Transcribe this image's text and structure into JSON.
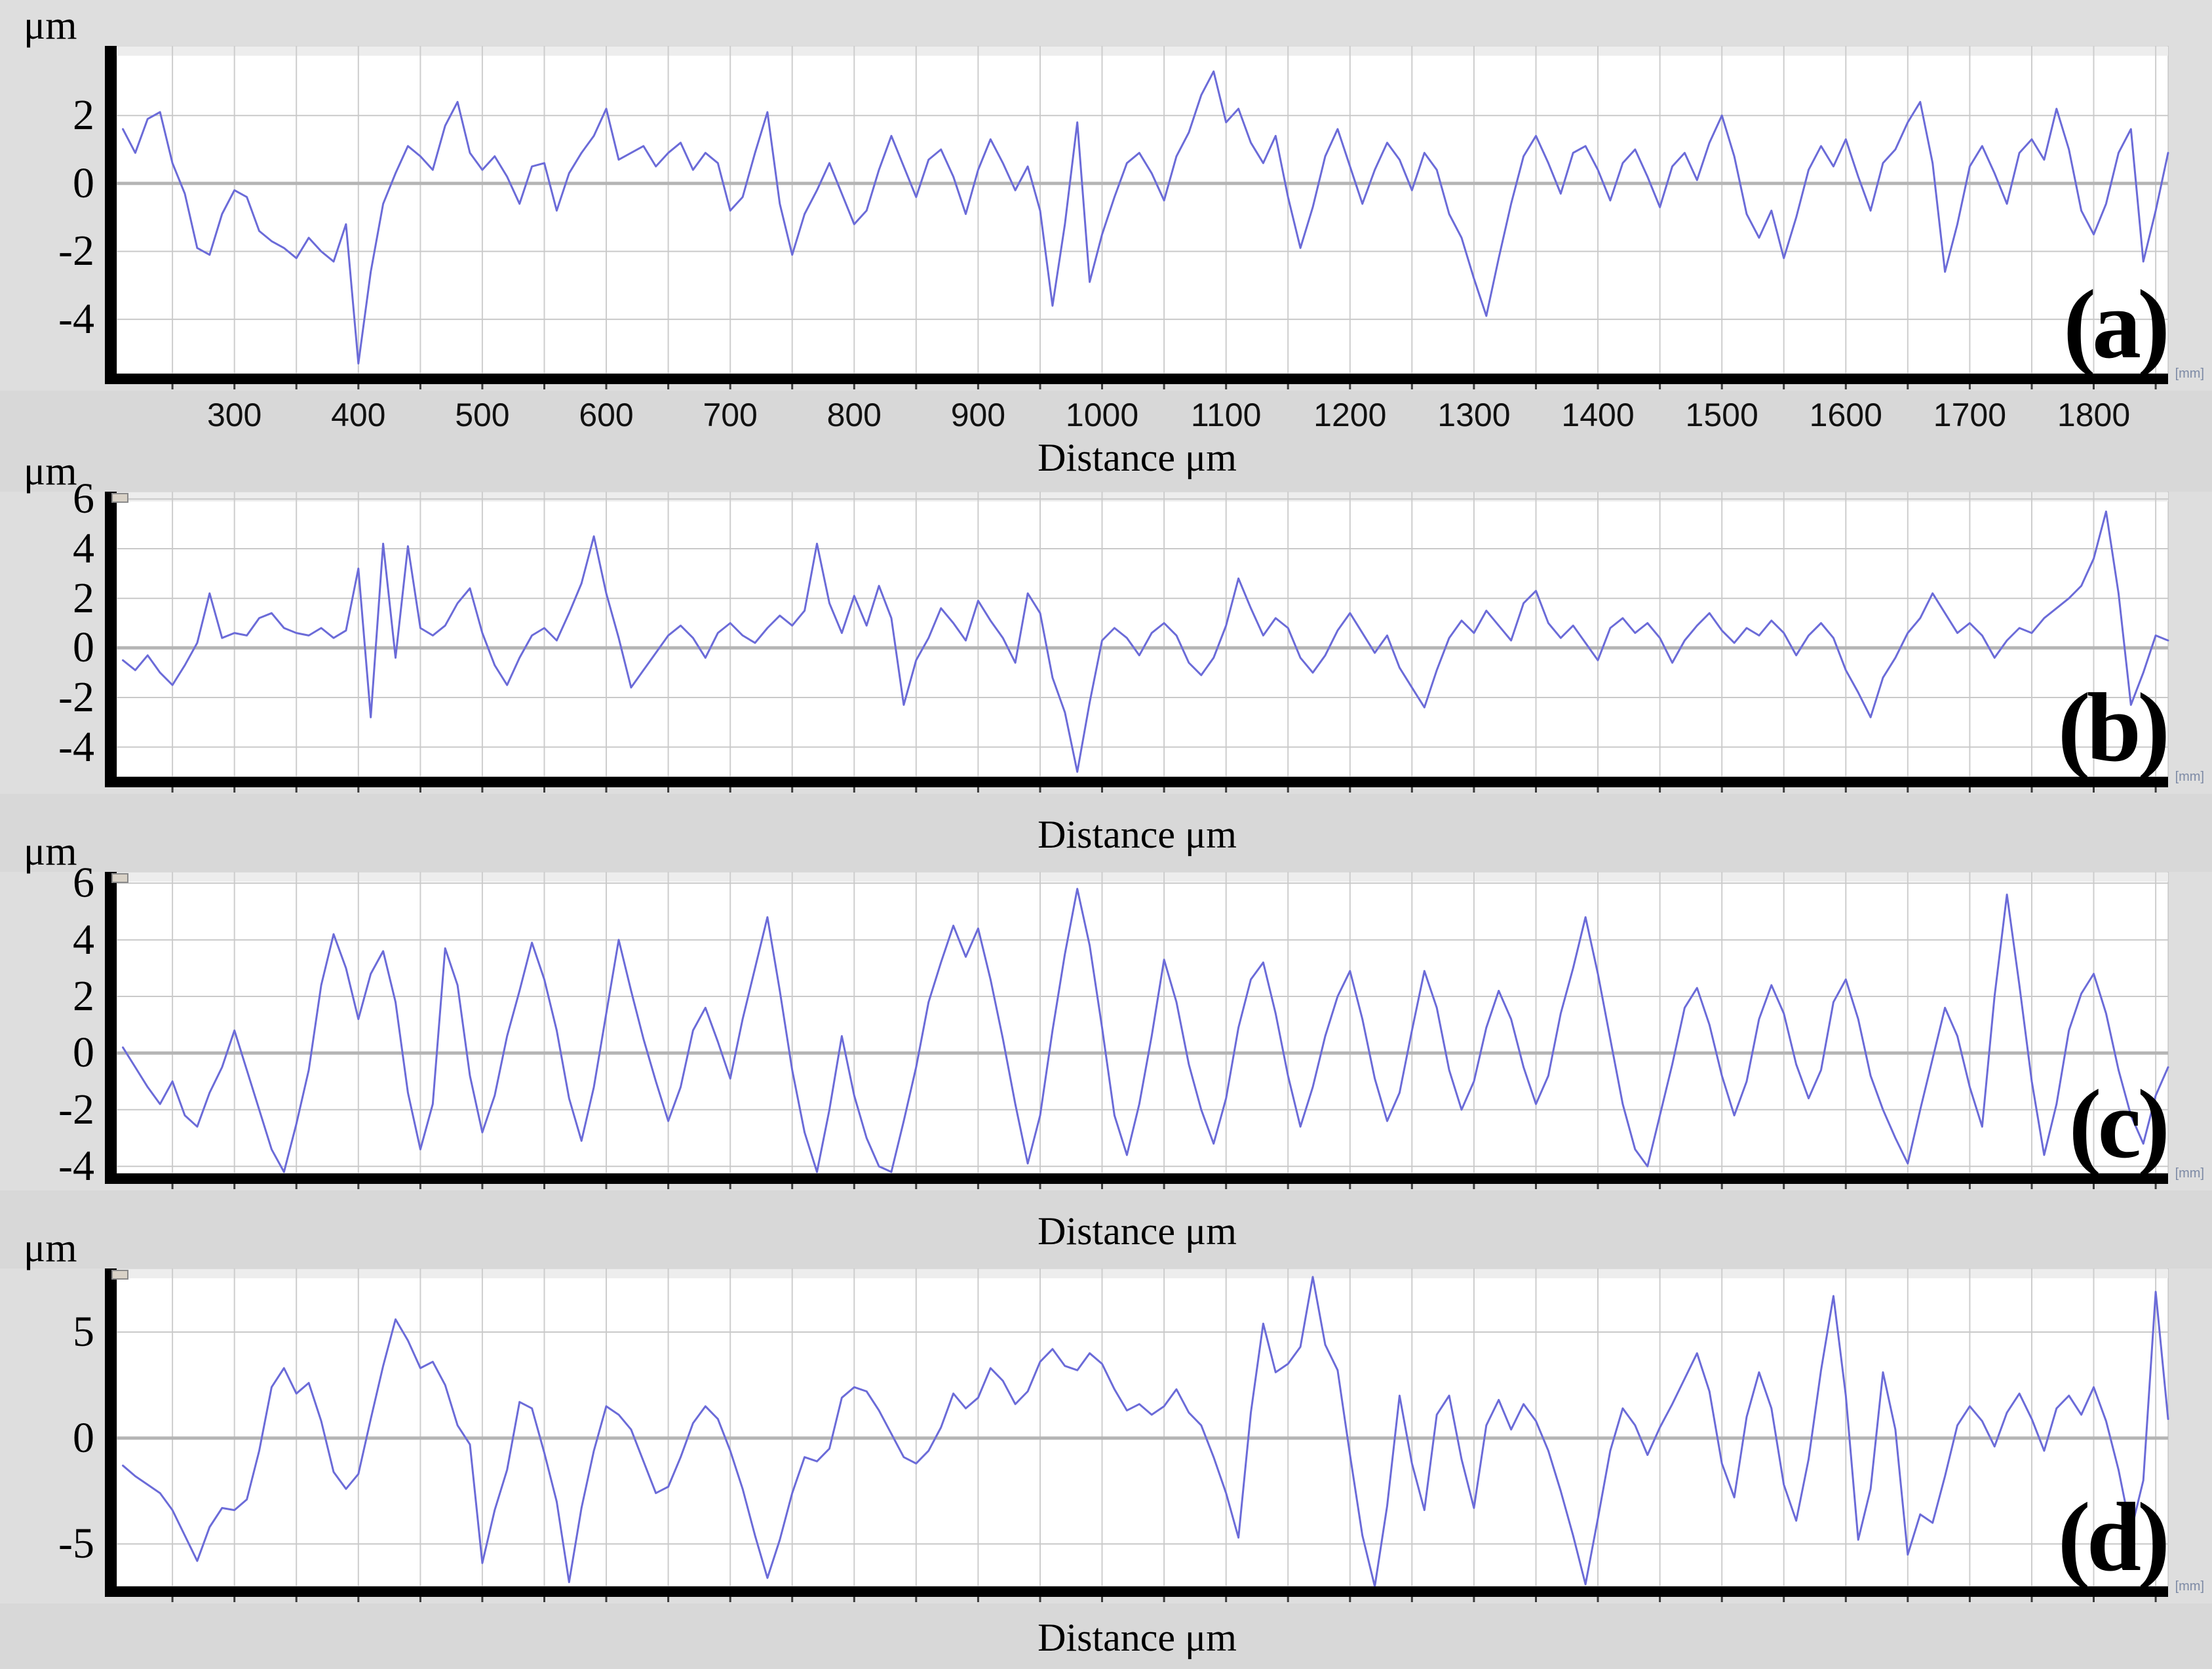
{
  "page": {
    "background": "#dedede",
    "band_color": "#d8d8d8",
    "plot_background": "#ffffff",
    "grid_color": "#c9c9c9",
    "axis_color": "#000000"
  },
  "labels": {
    "y_unit": "μm",
    "x_axis": "Distance μm",
    "axis_end_note": "[mm]"
  },
  "chart_data": [
    {
      "id": "a",
      "panel_label": "(a)",
      "type": "line",
      "title": "Surface roughness profile (a)",
      "ylabel": "μm",
      "xlabel": "Distance μm",
      "x_range": [
        205,
        1860
      ],
      "x_grid_step": 50,
      "x_ticks": [
        300,
        400,
        500,
        600,
        700,
        800,
        900,
        1000,
        1100,
        1200,
        1300,
        1400,
        1500,
        1600,
        1700,
        1800
      ],
      "y_ticks": [
        2,
        0,
        -2,
        -4
      ],
      "y_range": [
        -5.6,
        4.05
      ],
      "grid": true,
      "legend": "none",
      "trace_color": "#6b6bd8",
      "profile": {
        "x_start": 210,
        "x_step": 10,
        "unit": "μm",
        "values": [
          1.6,
          0.9,
          1.9,
          2.1,
          0.6,
          -0.3,
          -1.9,
          -2.1,
          -0.9,
          -0.2,
          -0.4,
          -1.4,
          -1.7,
          -1.9,
          -2.2,
          -1.6,
          -2.0,
          -2.3,
          -1.2,
          -5.3,
          -2.6,
          -0.6,
          0.3,
          1.1,
          0.8,
          0.4,
          1.7,
          2.4,
          0.9,
          0.4,
          0.8,
          0.2,
          -0.6,
          0.5,
          0.6,
          -0.8,
          0.3,
          0.9,
          1.4,
          2.2,
          0.7,
          0.9,
          1.1,
          0.5,
          0.9,
          1.2,
          0.4,
          0.9,
          0.6,
          -0.8,
          -0.4,
          0.9,
          2.1,
          -0.6,
          -2.1,
          -0.9,
          -0.2,
          0.6,
          -0.3,
          -1.2,
          -0.8,
          0.4,
          1.4,
          0.5,
          -0.4,
          0.7,
          1.0,
          0.2,
          -0.9,
          0.4,
          1.3,
          0.6,
          -0.2,
          0.5,
          -0.8,
          -3.6,
          -1.2,
          1.8,
          -2.9,
          -1.5,
          -0.4,
          0.6,
          0.9,
          0.3,
          -0.5,
          0.8,
          1.5,
          2.6,
          3.3,
          1.8,
          2.2,
          1.2,
          0.6,
          1.4,
          -0.4,
          -1.9,
          -0.7,
          0.8,
          1.6,
          0.5,
          -0.6,
          0.4,
          1.2,
          0.7,
          -0.2,
          0.9,
          0.4,
          -0.9,
          -1.6,
          -2.8,
          -3.9,
          -2.2,
          -0.6,
          0.8,
          1.4,
          0.6,
          -0.3,
          0.9,
          1.1,
          0.4,
          -0.5,
          0.6,
          1.0,
          0.2,
          -0.7,
          0.5,
          0.9,
          0.1,
          1.2,
          2.0,
          0.8,
          -0.9,
          -1.6,
          -0.8,
          -2.2,
          -1.0,
          0.4,
          1.1,
          0.5,
          1.3,
          0.2,
          -0.8,
          0.6,
          1.0,
          1.8,
          2.4,
          0.6,
          -2.6,
          -1.2,
          0.5,
          1.1,
          0.3,
          -0.6,
          0.9,
          1.3,
          0.7,
          2.2,
          1.0,
          -0.8,
          -1.5,
          -0.6,
          0.9,
          1.6,
          -2.3,
          -0.8,
          0.9
        ]
      }
    },
    {
      "id": "b",
      "panel_label": "(b)",
      "type": "line",
      "title": "Surface roughness profile (b)",
      "ylabel": "μm",
      "xlabel": "Distance μm",
      "x_range": [
        205,
        1860
      ],
      "x_grid_step": 50,
      "x_ticks": [],
      "y_ticks": [
        6,
        4,
        2,
        0,
        -2,
        -4
      ],
      "y_range": [
        -5.2,
        6.3
      ],
      "grid": true,
      "legend": "none",
      "trace_color": "#6b6bd8",
      "profile": {
        "x_start": 210,
        "x_step": 10,
        "unit": "μm",
        "values": [
          -0.5,
          -0.9,
          -0.3,
          -1.0,
          -1.5,
          -0.7,
          0.2,
          2.2,
          0.4,
          0.6,
          0.5,
          1.2,
          1.4,
          0.8,
          0.6,
          0.5,
          0.8,
          0.4,
          0.7,
          3.2,
          -2.8,
          4.2,
          -0.4,
          4.1,
          0.8,
          0.5,
          0.9,
          1.8,
          2.4,
          0.6,
          -0.7,
          -1.5,
          -0.4,
          0.5,
          0.8,
          0.3,
          1.4,
          2.6,
          4.5,
          2.2,
          0.4,
          -1.6,
          -0.9,
          -0.2,
          0.5,
          0.9,
          0.4,
          -0.4,
          0.6,
          1.0,
          0.5,
          0.2,
          0.8,
          1.3,
          0.9,
          1.5,
          4.2,
          1.8,
          0.6,
          2.1,
          0.9,
          2.5,
          1.2,
          -2.3,
          -0.5,
          0.4,
          1.6,
          1.0,
          0.3,
          1.9,
          1.1,
          0.4,
          -0.6,
          2.2,
          1.4,
          -1.2,
          -2.6,
          -5.0,
          -2.2,
          0.3,
          0.8,
          0.4,
          -0.3,
          0.6,
          1.0,
          0.5,
          -0.6,
          -1.1,
          -0.4,
          0.9,
          2.8,
          1.6,
          0.5,
          1.2,
          0.8,
          -0.4,
          -1.0,
          -0.3,
          0.7,
          1.4,
          0.6,
          -0.2,
          0.5,
          -0.8,
          -1.6,
          -2.4,
          -0.9,
          0.4,
          1.1,
          0.6,
          1.5,
          0.9,
          0.3,
          1.8,
          2.3,
          1.0,
          0.4,
          0.9,
          0.2,
          -0.5,
          0.8,
          1.2,
          0.6,
          1.0,
          0.4,
          -0.6,
          0.3,
          0.9,
          1.4,
          0.7,
          0.2,
          0.8,
          0.5,
          1.1,
          0.6,
          -0.3,
          0.5,
          1.0,
          0.4,
          -0.9,
          -1.8,
          -2.8,
          -1.2,
          -0.4,
          0.6,
          1.2,
          2.2,
          1.4,
          0.6,
          1.0,
          0.5,
          -0.4,
          0.3,
          0.8,
          0.6,
          1.2,
          1.6,
          2.0,
          2.5,
          3.6,
          5.5,
          2.2,
          -2.3,
          -1.0,
          0.5,
          0.3
        ]
      }
    },
    {
      "id": "c",
      "panel_label": "(c)",
      "type": "line",
      "title": "Surface roughness profile (c)",
      "ylabel": "μm",
      "xlabel": "Distance μm",
      "x_range": [
        205,
        1860
      ],
      "x_grid_step": 50,
      "x_ticks": [],
      "y_ticks": [
        6,
        4,
        2,
        0,
        -2,
        -4
      ],
      "y_range": [
        -4.25,
        6.4
      ],
      "grid": true,
      "legend": "none",
      "trace_color": "#6b6bd8",
      "profile": {
        "x_start": 210,
        "x_step": 10,
        "unit": "μm",
        "values": [
          0.2,
          -0.5,
          -1.2,
          -1.8,
          -1.0,
          -2.2,
          -2.6,
          -1.4,
          -0.5,
          0.8,
          -0.6,
          -2.0,
          -3.4,
          -4.2,
          -2.5,
          -0.6,
          2.4,
          4.2,
          3.0,
          1.2,
          2.8,
          3.6,
          1.8,
          -1.4,
          -3.4,
          -1.8,
          3.7,
          2.4,
          -0.8,
          -2.8,
          -1.5,
          0.6,
          2.2,
          3.9,
          2.6,
          0.8,
          -1.6,
          -3.1,
          -1.2,
          1.4,
          4.0,
          2.2,
          0.5,
          -1.0,
          -2.4,
          -1.2,
          0.8,
          1.6,
          0.4,
          -0.9,
          1.2,
          3.0,
          4.8,
          2.2,
          -0.6,
          -2.8,
          -4.2,
          -2.0,
          0.6,
          -1.5,
          -3.0,
          -4.0,
          -4.2,
          -2.4,
          -0.5,
          1.8,
          3.2,
          4.5,
          3.4,
          4.4,
          2.6,
          0.5,
          -1.8,
          -3.9,
          -2.2,
          0.8,
          3.5,
          5.8,
          3.8,
          0.9,
          -2.2,
          -3.6,
          -1.8,
          0.6,
          3.3,
          1.8,
          -0.4,
          -2.0,
          -3.2,
          -1.6,
          0.9,
          2.6,
          3.2,
          1.4,
          -0.8,
          -2.6,
          -1.2,
          0.6,
          2.0,
          2.9,
          1.2,
          -0.9,
          -2.4,
          -1.4,
          0.8,
          2.9,
          1.6,
          -0.6,
          -2.0,
          -1.0,
          0.9,
          2.2,
          1.2,
          -0.5,
          -1.8,
          -0.8,
          1.4,
          3.0,
          4.8,
          2.8,
          0.5,
          -1.8,
          -3.4,
          -4.0,
          -2.2,
          -0.4,
          1.6,
          2.3,
          1.0,
          -0.8,
          -2.2,
          -1.0,
          1.2,
          2.4,
          1.4,
          -0.4,
          -1.6,
          -0.6,
          1.8,
          2.6,
          1.2,
          -0.8,
          -2.0,
          -3.0,
          -3.9,
          -2.0,
          -0.2,
          1.6,
          0.6,
          -1.2,
          -2.6,
          2.0,
          5.6,
          2.4,
          -1.0,
          -3.6,
          -1.8,
          0.8,
          2.1,
          2.8,
          1.4,
          -0.6,
          -2.2,
          -3.2,
          -1.5,
          -0.5
        ]
      }
    },
    {
      "id": "d",
      "panel_label": "(d)",
      "type": "line",
      "title": "Surface roughness profile (d)",
      "ylabel": "μm",
      "xlabel": "Distance μm",
      "x_range": [
        205,
        1860
      ],
      "x_grid_step": 50,
      "x_ticks": [],
      "y_ticks": [
        5,
        0,
        -5
      ],
      "y_range": [
        -7.0,
        8.0
      ],
      "grid": true,
      "legend": "none",
      "trace_color": "#6b6bd8",
      "profile": {
        "x_start": 210,
        "x_step": 10,
        "unit": "μm",
        "values": [
          -1.3,
          -1.8,
          -2.2,
          -2.6,
          -3.4,
          -4.6,
          -5.8,
          -4.2,
          -3.3,
          -3.4,
          -2.9,
          -0.6,
          2.4,
          3.3,
          2.1,
          2.6,
          0.8,
          -1.6,
          -2.4,
          -1.7,
          0.9,
          3.4,
          5.6,
          4.6,
          3.3,
          3.6,
          2.5,
          0.6,
          -0.3,
          -5.9,
          -3.4,
          -1.5,
          1.7,
          1.4,
          -0.7,
          -3.0,
          -6.8,
          -3.3,
          -0.6,
          1.5,
          1.1,
          0.4,
          -1.1,
          -2.6,
          -2.3,
          -0.9,
          0.7,
          1.5,
          0.9,
          -0.6,
          -2.4,
          -4.6,
          -6.6,
          -4.8,
          -2.6,
          -0.9,
          -1.1,
          -0.5,
          1.9,
          2.4,
          2.2,
          1.3,
          0.2,
          -0.9,
          -1.2,
          -0.6,
          0.5,
          2.1,
          1.4,
          1.9,
          3.3,
          2.7,
          1.6,
          2.2,
          3.6,
          4.2,
          3.4,
          3.2,
          4.0,
          3.5,
          2.3,
          1.3,
          1.6,
          1.1,
          1.5,
          2.3,
          1.2,
          0.6,
          -0.9,
          -2.6,
          -4.7,
          1.2,
          5.4,
          3.1,
          3.5,
          4.3,
          7.6,
          4.4,
          3.2,
          -0.8,
          -4.6,
          -7.0,
          -3.2,
          2.0,
          -1.2,
          -3.4,
          1.1,
          2.0,
          -1.0,
          -3.3,
          0.6,
          1.8,
          0.4,
          1.6,
          0.8,
          -0.6,
          -2.5,
          -4.6,
          -6.9,
          -3.8,
          -0.6,
          1.4,
          0.6,
          -0.8,
          0.5,
          1.6,
          2.8,
          4.0,
          2.2,
          -1.2,
          -2.8,
          1.0,
          3.1,
          1.4,
          -2.2,
          -3.9,
          -1.0,
          3.2,
          6.7,
          2.0,
          -4.8,
          -2.4,
          3.1,
          0.4,
          -5.5,
          -3.6,
          -4.0,
          -1.8,
          0.6,
          1.5,
          0.8,
          -0.4,
          1.2,
          2.1,
          0.9,
          -0.6,
          1.4,
          2.0,
          1.1,
          2.4,
          0.8,
          -1.5,
          -4.4,
          -2.0,
          6.9,
          0.9
        ]
      }
    }
  ]
}
